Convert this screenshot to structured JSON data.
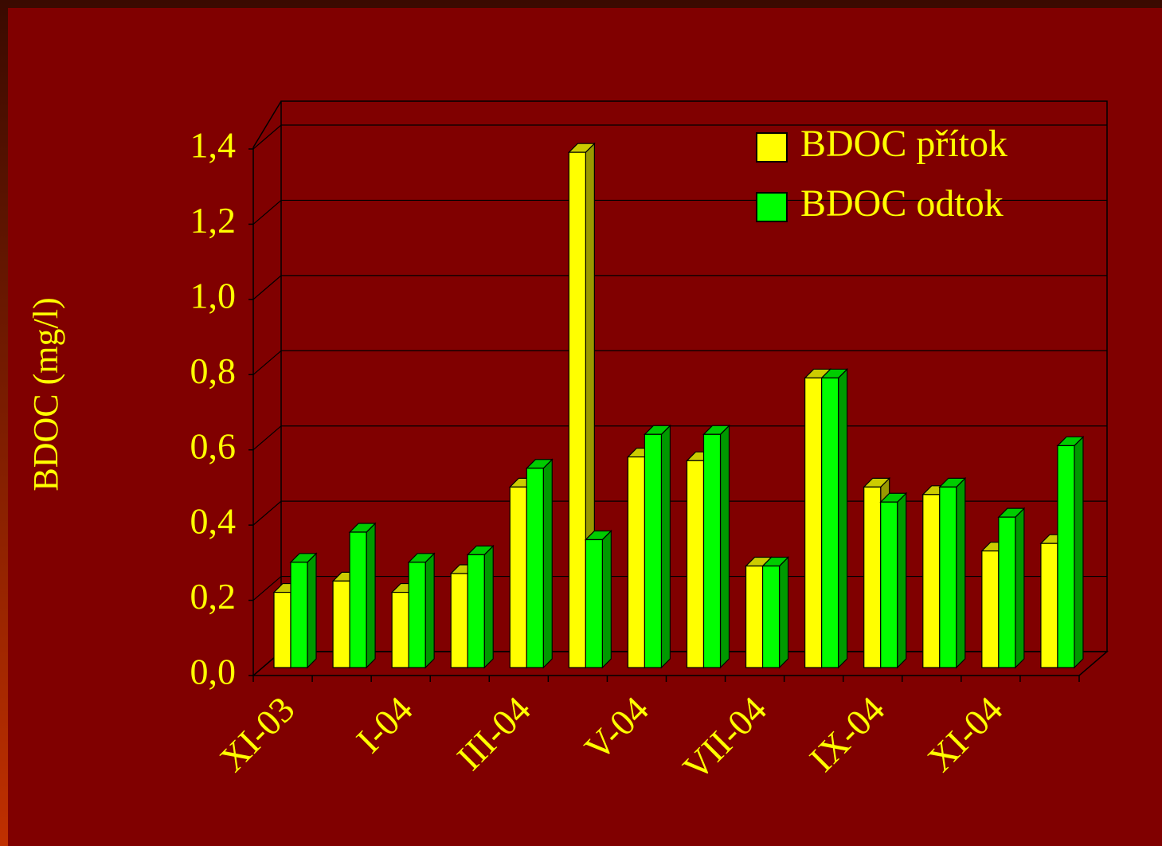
{
  "chart_data": {
    "type": "bar3d",
    "y_label": "BDOC (mg/l)",
    "categories": [
      "XI-03",
      null,
      "I-04",
      null,
      "III-04",
      null,
      "V-04",
      null,
      "VII-04",
      null,
      "IX-04",
      null,
      "XI-04",
      null
    ],
    "series": [
      {
        "name": "BDOC přítok",
        "color": "#ffff00",
        "values": [
          0.2,
          0.23,
          0.2,
          0.25,
          0.48,
          1.37,
          0.56,
          0.55,
          0.27,
          0.77,
          0.48,
          0.46,
          0.31,
          0.33
        ]
      },
      {
        "name": "BDOC odtok",
        "color": "#00ff00",
        "values": [
          0.28,
          0.36,
          0.28,
          0.3,
          0.53,
          0.34,
          0.62,
          0.62,
          0.27,
          0.77,
          0.44,
          0.48,
          0.4,
          0.59
        ]
      }
    ],
    "ylim": [
      0,
      1.4
    ],
    "yticks": [
      {
        "value": 0,
        "label": "0,0"
      },
      {
        "value": 0.2,
        "label": "0,2"
      },
      {
        "value": 0.4,
        "label": "0,4"
      },
      {
        "value": 0.6,
        "label": "0,6"
      },
      {
        "value": 0.8,
        "label": "0,8"
      },
      {
        "value": 1.0,
        "label": "1,0"
      },
      {
        "value": 1.2,
        "label": "1,2"
      },
      {
        "value": 1.4,
        "label": "1,4"
      }
    ],
    "grid": true,
    "legend": "top-right"
  }
}
